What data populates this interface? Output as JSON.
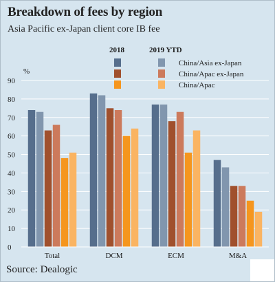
{
  "header": {
    "title": "Breakdown of fees by region",
    "subtitle": "Asia Pacific ex-Japan client core IB fee"
  },
  "footer": {
    "source": "Source: Dealogic"
  },
  "colors": {
    "panel_bg": "#d6e5ef",
    "grid": "#ffffff",
    "text": "#1a1a1a"
  },
  "chart_data": {
    "type": "bar",
    "categories": [
      "Total",
      "DCM",
      "ECM",
      "M&A"
    ],
    "legend_years": [
      "2018",
      "2019 YTD"
    ],
    "ylabel": "%",
    "ylim": [
      0,
      90
    ],
    "yticks": [
      0,
      10,
      20,
      30,
      40,
      50,
      60,
      70,
      80,
      90
    ],
    "grid": true,
    "series": [
      {
        "name": "China/Asia ex-Japan",
        "year": "2018",
        "color": "#566e8c",
        "values": [
          74,
          83,
          77,
          47
        ]
      },
      {
        "name": "China/Asia ex-Japan",
        "year": "2019 YTD",
        "color": "#8196ae",
        "values": [
          73,
          82,
          77,
          43
        ]
      },
      {
        "name": "China/Apac ex-Japan",
        "year": "2018",
        "color": "#a0502d",
        "values": [
          63,
          75,
          68,
          33
        ]
      },
      {
        "name": "China/Apac ex-Japan",
        "year": "2019 YTD",
        "color": "#cc7a5c",
        "values": [
          66,
          74,
          73,
          33
        ]
      },
      {
        "name": "China/Apac",
        "year": "2018",
        "color": "#f5961e",
        "values": [
          48,
          60,
          51,
          25
        ]
      },
      {
        "name": "China/Apac",
        "year": "2019 YTD",
        "color": "#fab462",
        "values": [
          51,
          64,
          63,
          19
        ]
      }
    ]
  }
}
